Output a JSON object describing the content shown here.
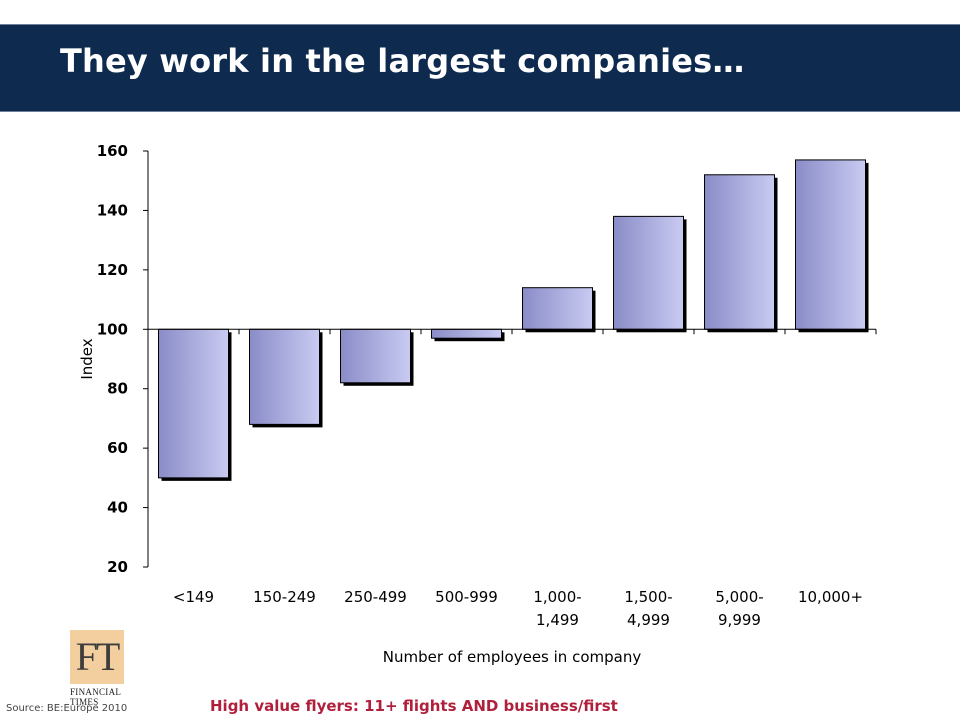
{
  "slide": {
    "title": "They work in the largest companies…",
    "source": "Source: BE:Europe 2010",
    "footnote": "High value flyers: 11+ flights AND business/first"
  },
  "logo": {
    "mark": "FT",
    "line1": "FINANCIAL",
    "line2": "TIMES",
    "icon": "ft-logo-icon"
  },
  "colors": {
    "title_bar": "#0e2a4e",
    "bar_fill_dark": "#8a8cc8",
    "bar_fill_light": "#c9cbf2",
    "footnote": "#b0203c"
  },
  "chart_data": {
    "type": "bar",
    "baseline": 100,
    "categories": [
      [
        "<149"
      ],
      [
        "150-249"
      ],
      [
        "250-499"
      ],
      [
        "500-999"
      ],
      [
        "1,000-",
        "1,499"
      ],
      [
        "1,500-",
        "4,999"
      ],
      [
        "5,000-",
        "9,999"
      ],
      [
        "10,000+"
      ]
    ],
    "values": [
      50,
      68,
      82,
      97,
      114,
      138,
      152,
      157
    ],
    "ylabel": "Index",
    "xlabel": "Number of employees in company",
    "ylim": [
      20,
      160
    ],
    "yticks": [
      20,
      40,
      60,
      80,
      100,
      120,
      140,
      160
    ],
    "grid": false,
    "legend": "none"
  }
}
